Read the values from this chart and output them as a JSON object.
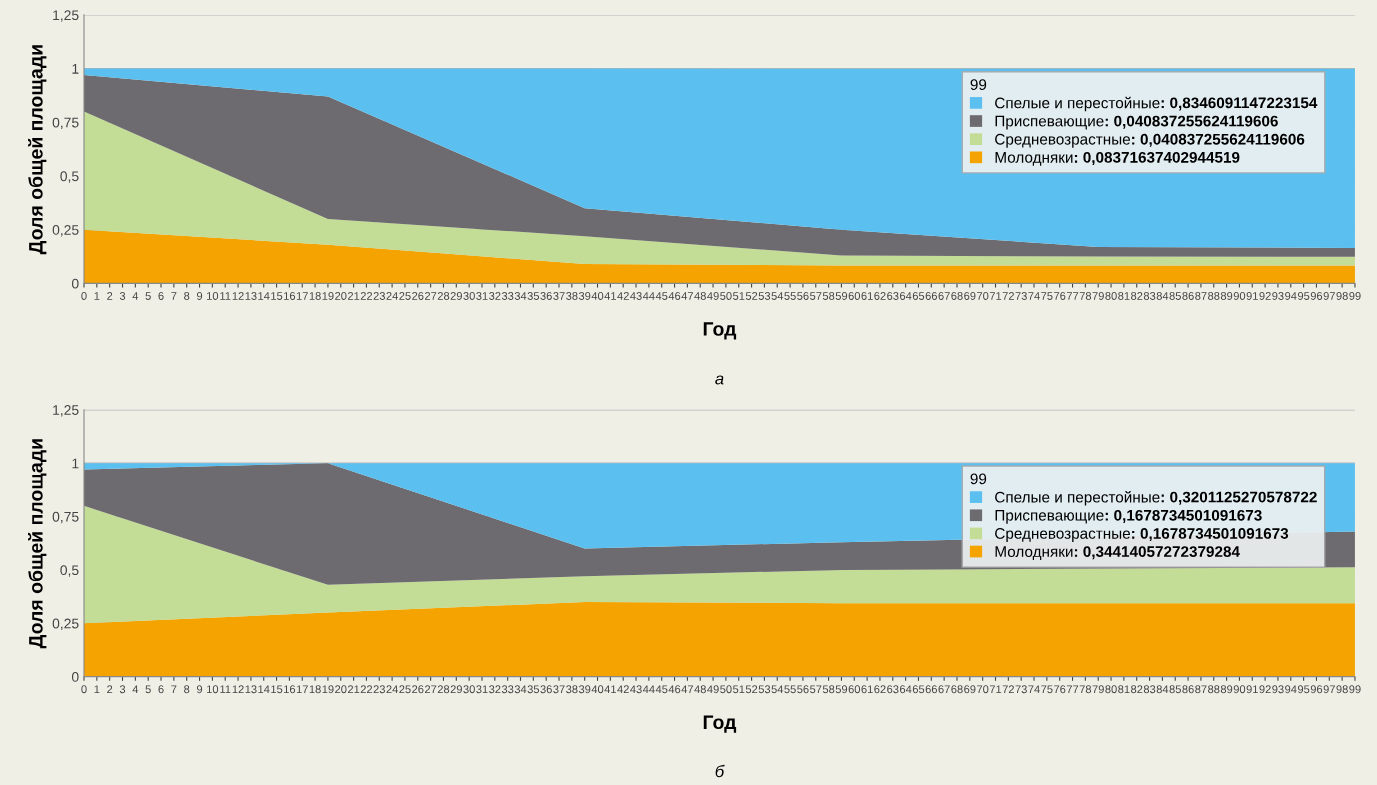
{
  "chart_data": [
    {
      "type": "area",
      "stacked": true,
      "xlabel": "Год",
      "ylabel": "Доля общей площади",
      "legend_title": "99",
      "legend": "right",
      "grid": "y",
      "x": [
        0,
        19,
        39,
        59,
        79,
        99
      ],
      "xlim": [
        0,
        99
      ],
      "ylim": [
        0,
        1.25
      ],
      "yticks": [
        0,
        {
          "value": 0.25,
          "label": "0,25"
        },
        {
          "value": 0.5,
          "label": "0,5"
        },
        {
          "value": 0.75,
          "label": "0,75"
        },
        1,
        {
          "value": 1.25,
          "label": "1,25"
        }
      ],
      "xticks": [
        0,
        1,
        2,
        3,
        4,
        5,
        6,
        7,
        8,
        9,
        10,
        11,
        12,
        13,
        14,
        15,
        16,
        17,
        18,
        19,
        20,
        21,
        22,
        23,
        24,
        25,
        26,
        27,
        28,
        29,
        30,
        31,
        32,
        33,
        34,
        35,
        36,
        37,
        38,
        39,
        40,
        41,
        42,
        43,
        44,
        45,
        46,
        47,
        48,
        49,
        50,
        51,
        52,
        53,
        54,
        55,
        56,
        57,
        58,
        59,
        60,
        61,
        62,
        63,
        64,
        65,
        66,
        67,
        68,
        69,
        70,
        71,
        72,
        73,
        74,
        75,
        76,
        77,
        78,
        79,
        80,
        81,
        82,
        83,
        84,
        85,
        86,
        87,
        88,
        89,
        90,
        91,
        92,
        93,
        94,
        95,
        96,
        97,
        98,
        99
      ],
      "annotations": [
        "а",
        ": 0,8346091147223154",
        ": 0,040837255624119606",
        ": 0,040837255624119606",
        ": 0,08371637402944519"
      ],
      "series": [
        {
          "name": "Молодняки",
          "color": "#f5a300",
          "values": [
            0.25,
            0.18,
            0.09,
            0.0837,
            0.0837,
            0.0837
          ]
        },
        {
          "name": "Средневозрастные",
          "color": "#c3dc96",
          "values": [
            0.55,
            0.12,
            0.13,
            0.046,
            0.041,
            0.0408
          ]
        },
        {
          "name": "Приспевающие",
          "color": "#6d6b70",
          "values": [
            0.17,
            0.57,
            0.13,
            0.12,
            0.045,
            0.0408
          ]
        },
        {
          "name": "Спелые и перестойные",
          "color": "#5bc0f0",
          "values": [
            0.03,
            0.13,
            0.65,
            0.75,
            0.83,
            0.8346
          ]
        }
      ]
    },
    {
      "type": "area",
      "stacked": true,
      "xlabel": "Год",
      "ylabel": "Доля общей площади",
      "legend_title": "99",
      "legend": "right",
      "grid": "y",
      "x": [
        0,
        19,
        39,
        59,
        99
      ],
      "xlim": [
        0,
        99
      ],
      "ylim": [
        0,
        1.25
      ],
      "yticks": [
        0,
        {
          "value": 0.25,
          "label": "0,25"
        },
        {
          "value": 0.5,
          "label": "0,5"
        },
        {
          "value": 0.75,
          "label": "0,75"
        },
        1,
        {
          "value": 1.25,
          "label": "1,25"
        }
      ],
      "xticks": [
        0,
        1,
        2,
        3,
        4,
        5,
        6,
        7,
        8,
        9,
        10,
        11,
        12,
        13,
        14,
        15,
        16,
        17,
        18,
        19,
        20,
        21,
        22,
        23,
        24,
        25,
        26,
        27,
        28,
        29,
        30,
        31,
        32,
        33,
        34,
        35,
        36,
        37,
        38,
        39,
        40,
        41,
        42,
        43,
        44,
        45,
        46,
        47,
        48,
        49,
        50,
        51,
        52,
        53,
        54,
        55,
        56,
        57,
        58,
        59,
        60,
        61,
        62,
        63,
        64,
        65,
        66,
        67,
        68,
        69,
        70,
        71,
        72,
        73,
        74,
        75,
        76,
        77,
        78,
        79,
        80,
        81,
        82,
        83,
        84,
        85,
        86,
        87,
        88,
        89,
        90,
        91,
        92,
        93,
        94,
        95,
        96,
        97,
        98,
        99
      ],
      "annotations": [
        "б",
        ": 0,3201125270578722",
        ": 0,1678734501091673",
        ": 0,1678734501091673",
        ": 0,34414057272379284"
      ],
      "series": [
        {
          "name": "Молодняки",
          "color": "#f5a300",
          "values": [
            0.25,
            0.3,
            0.35,
            0.344,
            0.3441
          ]
        },
        {
          "name": "Средневозрастные",
          "color": "#c3dc96",
          "values": [
            0.55,
            0.13,
            0.12,
            0.156,
            0.1679
          ]
        },
        {
          "name": "Приспевающие",
          "color": "#6d6b70",
          "values": [
            0.17,
            0.57,
            0.13,
            0.13,
            0.1679
          ]
        },
        {
          "name": "Спелые и перестойные",
          "color": "#5bc0f0",
          "values": [
            0.03,
            0.0,
            0.4,
            0.37,
            0.3201
          ]
        }
      ]
    }
  ]
}
